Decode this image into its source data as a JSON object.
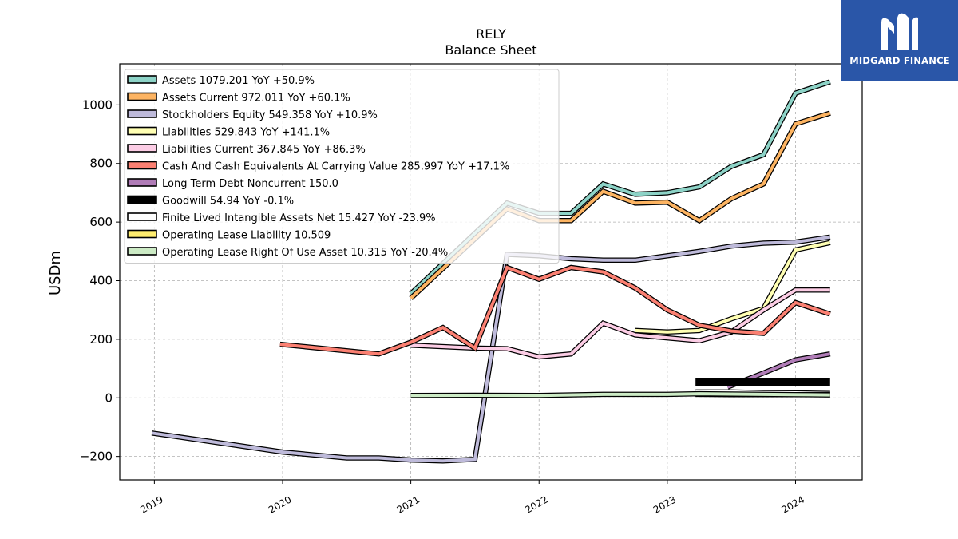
{
  "logo": {
    "text": "MIDGARD FINANCE",
    "bg": "#2a56a8",
    "icon": "midgard-m-icon"
  },
  "chart_data": {
    "type": "line",
    "title": "RELY",
    "subtitle": "Balance  Sheet",
    "ylabel": "USDm",
    "xlabel": "",
    "ylim": [
      -280,
      1140
    ],
    "xlim": [
      2018.73,
      2024.52
    ],
    "yticks": [
      -200,
      0,
      200,
      400,
      600,
      800,
      1000
    ],
    "ytick_labels": [
      "−200",
      "0",
      "200",
      "400",
      "600",
      "800",
      "1000"
    ],
    "xticks": [
      2019,
      2020,
      2021,
      2022,
      2023,
      2024
    ],
    "xtick_labels": [
      "2019",
      "2020",
      "2021",
      "2022",
      "2023",
      "2024"
    ],
    "grid": true,
    "legend_position": "upper-left",
    "series": [
      {
        "name": "Assets  1079.201 YoY +50.9%",
        "color": "#8dd3c7",
        "points": [
          [
            2021.0,
            355
          ],
          [
            2021.75,
            665
          ],
          [
            2022.0,
            630
          ],
          [
            2022.25,
            630
          ],
          [
            2022.5,
            730
          ],
          [
            2022.75,
            695
          ],
          [
            2023.0,
            700
          ],
          [
            2023.25,
            720
          ],
          [
            2023.5,
            790
          ],
          [
            2023.75,
            830
          ],
          [
            2024.0,
            1040
          ],
          [
            2024.27,
            1079
          ]
        ]
      },
      {
        "name": "Assets Current  972.011 YoY +60.1%",
        "color": "#fdb462",
        "points": [
          [
            2021.0,
            340
          ],
          [
            2021.75,
            645
          ],
          [
            2022.0,
            605
          ],
          [
            2022.25,
            605
          ],
          [
            2022.5,
            705
          ],
          [
            2022.75,
            665
          ],
          [
            2023.0,
            668
          ],
          [
            2023.25,
            605
          ],
          [
            2023.5,
            680
          ],
          [
            2023.75,
            730
          ],
          [
            2024.0,
            935
          ],
          [
            2024.27,
            972
          ]
        ]
      },
      {
        "name": "Stockholders Equity  549.358 YoY +10.9%",
        "color": "#bebada",
        "points": [
          [
            2018.98,
            -120
          ],
          [
            2020.0,
            -185
          ],
          [
            2020.5,
            -205
          ],
          [
            2020.75,
            -205
          ],
          [
            2021.0,
            -212
          ],
          [
            2021.25,
            -215
          ],
          [
            2021.5,
            -210
          ],
          [
            2021.75,
            490
          ],
          [
            2022.0,
            485
          ],
          [
            2022.25,
            475
          ],
          [
            2022.5,
            470
          ],
          [
            2022.75,
            470
          ],
          [
            2023.0,
            485
          ],
          [
            2023.25,
            500
          ],
          [
            2023.5,
            518
          ],
          [
            2023.75,
            528
          ],
          [
            2024.0,
            532
          ],
          [
            2024.27,
            549
          ]
        ]
      },
      {
        "name": "Liabilities  529.843 YoY +141.1%",
        "color": "#ffffb3",
        "points": [
          [
            2022.75,
            230
          ],
          [
            2023.0,
            225
          ],
          [
            2023.25,
            230
          ],
          [
            2023.5,
            270
          ],
          [
            2023.75,
            305
          ],
          [
            2024.0,
            505
          ],
          [
            2024.27,
            530
          ]
        ]
      },
      {
        "name": "Liabilities Current  367.845 YoY +86.3%",
        "color": "#fccde5",
        "points": [
          [
            2021.0,
            180
          ],
          [
            2021.5,
            170
          ],
          [
            2021.75,
            168
          ],
          [
            2022.0,
            140
          ],
          [
            2022.25,
            150
          ],
          [
            2022.5,
            255
          ],
          [
            2022.75,
            215
          ],
          [
            2023.0,
            205
          ],
          [
            2023.25,
            195
          ],
          [
            2023.5,
            225
          ],
          [
            2023.75,
            300
          ],
          [
            2024.0,
            368
          ],
          [
            2024.27,
            368
          ]
        ]
      },
      {
        "name": "Cash And Cash Equivalents At Carrying Value  285.997 YoY +17.1%",
        "color": "#fb8072",
        "points": [
          [
            2019.98,
            183
          ],
          [
            2020.75,
            150
          ],
          [
            2021.0,
            190
          ],
          [
            2021.25,
            240
          ],
          [
            2021.5,
            170
          ],
          [
            2021.75,
            445
          ],
          [
            2022.0,
            405
          ],
          [
            2022.25,
            445
          ],
          [
            2022.5,
            430
          ],
          [
            2022.75,
            375
          ],
          [
            2023.0,
            300
          ],
          [
            2023.25,
            248
          ],
          [
            2023.5,
            228
          ],
          [
            2023.75,
            220
          ],
          [
            2024.0,
            325
          ],
          [
            2024.27,
            286
          ]
        ]
      },
      {
        "name": "Long Term Debt Noncurrent  150.0",
        "color": "#b07cb7",
        "points": [
          [
            2023.47,
            37
          ],
          [
            2023.75,
            85
          ],
          [
            2024.0,
            130
          ],
          [
            2024.27,
            150
          ]
        ]
      },
      {
        "name": "Goodwill  54.94 YoY -0.1%",
        "color": "#000000",
        "points": [
          [
            2023.22,
            55
          ],
          [
            2023.5,
            55
          ],
          [
            2023.75,
            55
          ],
          [
            2024.0,
            55
          ],
          [
            2024.27,
            55
          ]
        ]
      },
      {
        "name": "Finite Lived Intangible Assets Net  15.427 YoY -23.9%",
        "color": "#ffffff",
        "points": [
          [
            2023.22,
            20
          ],
          [
            2023.5,
            20
          ],
          [
            2023.75,
            18
          ],
          [
            2024.0,
            17
          ],
          [
            2024.27,
            15
          ]
        ]
      },
      {
        "name": "Operating Lease Liability  10.509",
        "color": "#ffed6f",
        "points": [
          [
            2023.22,
            12
          ],
          [
            2023.5,
            11
          ],
          [
            2023.75,
            11
          ],
          [
            2024.0,
            11
          ],
          [
            2024.27,
            11
          ]
        ]
      },
      {
        "name": "Operating Lease Right Of Use Asset  10.315 YoY -20.4%",
        "color": "#ccebc5",
        "points": [
          [
            2021.0,
            8
          ],
          [
            2021.5,
            9
          ],
          [
            2022.0,
            8
          ],
          [
            2022.5,
            12
          ],
          [
            2023.0,
            12
          ],
          [
            2023.25,
            14
          ],
          [
            2023.5,
            13
          ],
          [
            2023.75,
            12
          ],
          [
            2024.0,
            11
          ],
          [
            2024.27,
            10
          ]
        ]
      }
    ]
  }
}
